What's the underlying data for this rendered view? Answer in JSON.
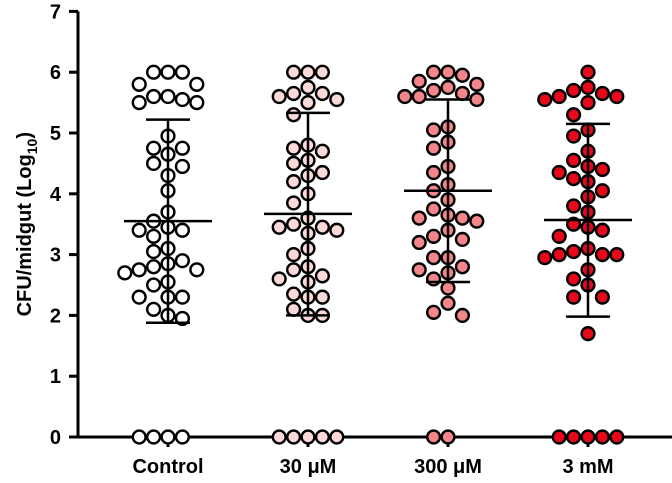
{
  "chart_data": {
    "type": "scatter",
    "ylabel": "CFU/midgut (Log",
    "ylabel_sub": "10",
    "ylabel_close": ")",
    "ylim": [
      0,
      7
    ],
    "yticks": [
      "0",
      "1",
      "2",
      "3",
      "4",
      "5",
      "6",
      "7"
    ],
    "categories": [
      "Control",
      "30 μM",
      "300 μM",
      "3 mM"
    ],
    "colors": [
      "#ffffff",
      "#fcd9d9",
      "#f2868a",
      "#e8081b"
    ],
    "series": [
      {
        "values": [
          6.0,
          6.0,
          6.0,
          5.8,
          5.8,
          5.6,
          5.6,
          5.55,
          5.5,
          5.5,
          4.95,
          4.75,
          4.75,
          4.65,
          4.5,
          4.45,
          4.3,
          4.05,
          3.7,
          3.55,
          3.45,
          3.4,
          3.4,
          3.3,
          3.1,
          3.05,
          2.9,
          2.85,
          2.8,
          2.75,
          2.75,
          2.7,
          2.55,
          2.5,
          2.3,
          2.3,
          2.3,
          2.1,
          2.0,
          1.95,
          0,
          0,
          0,
          0
        ],
        "mean": 3.55,
        "sd_upper": 5.22,
        "sd_lower": 1.88
      },
      {
        "values": [
          6.0,
          6.0,
          6.0,
          5.75,
          5.65,
          5.65,
          5.6,
          5.55,
          5.5,
          5.3,
          4.8,
          4.75,
          4.7,
          4.55,
          4.5,
          4.35,
          4.3,
          4.2,
          4.0,
          3.85,
          3.6,
          3.5,
          3.45,
          3.45,
          3.4,
          3.35,
          3.1,
          3.0,
          2.8,
          2.75,
          2.65,
          2.6,
          2.55,
          2.35,
          2.3,
          2.3,
          2.1,
          2.0,
          2.0,
          0,
          0,
          0,
          0,
          0
        ],
        "mean": 3.67,
        "sd_upper": 5.33,
        "sd_lower": 2.0
      },
      {
        "values": [
          6.0,
          6.0,
          5.95,
          5.85,
          5.8,
          5.75,
          5.7,
          5.65,
          5.6,
          5.6,
          5.55,
          5.1,
          5.05,
          4.85,
          4.75,
          4.45,
          4.35,
          4.15,
          4.05,
          3.9,
          3.75,
          3.65,
          3.6,
          3.6,
          3.55,
          3.4,
          3.3,
          3.25,
          3.2,
          2.95,
          2.95,
          2.8,
          2.75,
          2.7,
          2.6,
          2.45,
          2.2,
          2.05,
          2.0,
          0,
          0
        ],
        "mean": 4.05,
        "sd_upper": 5.55,
        "sd_lower": 2.55
      },
      {
        "values": [
          6.0,
          5.75,
          5.7,
          5.65,
          5.6,
          5.6,
          5.55,
          5.5,
          5.3,
          5.05,
          4.95,
          4.7,
          4.55,
          4.45,
          4.4,
          4.35,
          4.25,
          4.2,
          4.05,
          3.95,
          3.8,
          3.7,
          3.5,
          3.45,
          3.4,
          3.3,
          3.1,
          3.05,
          3.0,
          3.0,
          3.0,
          2.95,
          2.75,
          2.6,
          2.5,
          2.3,
          2.3,
          1.7,
          0,
          0,
          0,
          0,
          0
        ],
        "mean": 3.57,
        "sd_upper": 5.15,
        "sd_lower": 1.98
      }
    ]
  }
}
